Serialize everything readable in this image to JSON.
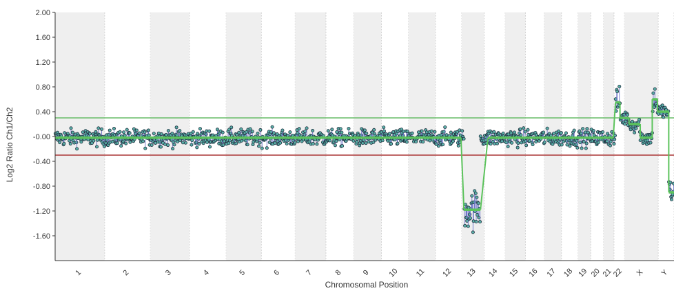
{
  "chart_data": {
    "type": "scatter",
    "title": "",
    "xlabel": "Chromosomal Position",
    "ylabel": "Log2 Ratio Ch1/Ch2",
    "ylim": [
      -2.0,
      2.0
    ],
    "yticks": [
      "2.00",
      "1.60",
      "1.20",
      "0.80",
      "0.40",
      "-0.00",
      "-0.40",
      "-0.80",
      "-1.20",
      "-1.60"
    ],
    "ytick_values": [
      2.0,
      1.6,
      1.2,
      0.8,
      0.4,
      0.0,
      -0.4,
      -0.8,
      -1.2,
      -1.6
    ],
    "thresholds": [
      {
        "value": 0.3,
        "color": "#66bb66"
      },
      {
        "value": -0.3,
        "color": "#aa3333"
      }
    ],
    "chromosomes": [
      {
        "label": "1",
        "start": 0,
        "end": 6.6,
        "shaded": true
      },
      {
        "label": "2",
        "start": 6.6,
        "end": 12.7,
        "shaded": false
      },
      {
        "label": "3",
        "start": 12.7,
        "end": 17.9,
        "shaded": true
      },
      {
        "label": "4",
        "start": 17.9,
        "end": 22.8,
        "shaded": false
      },
      {
        "label": "5",
        "start": 22.8,
        "end": 27.5,
        "shaded": true
      },
      {
        "label": "6",
        "start": 27.5,
        "end": 32.0,
        "shaded": false
      },
      {
        "label": "7",
        "start": 32.0,
        "end": 36.1,
        "shaded": true
      },
      {
        "label": "8",
        "start": 36.1,
        "end": 39.8,
        "shaded": false
      },
      {
        "label": "9",
        "start": 39.8,
        "end": 43.5,
        "shaded": true
      },
      {
        "label": "10",
        "start": 43.5,
        "end": 47.1,
        "shaded": false
      },
      {
        "label": "11",
        "start": 47.1,
        "end": 50.7,
        "shaded": true
      },
      {
        "label": "12",
        "start": 50.7,
        "end": 54.2,
        "shaded": false
      },
      {
        "label": "13",
        "start": 54.2,
        "end": 57.2,
        "shaded": true
      },
      {
        "label": "14",
        "start": 57.2,
        "end": 60.0,
        "shaded": false
      },
      {
        "label": "15",
        "start": 60.0,
        "end": 62.7,
        "shaded": true
      },
      {
        "label": "16",
        "start": 62.7,
        "end": 65.2,
        "shaded": false
      },
      {
        "label": "17",
        "start": 65.2,
        "end": 67.5,
        "shaded": true
      },
      {
        "label": "18",
        "start": 67.5,
        "end": 69.7,
        "shaded": false
      },
      {
        "label": "19",
        "start": 69.7,
        "end": 71.4,
        "shaded": true
      },
      {
        "label": "20",
        "start": 71.4,
        "end": 73.1,
        "shaded": false
      },
      {
        "label": "21",
        "start": 73.1,
        "end": 74.5,
        "shaded": true
      },
      {
        "label": "22",
        "start": 74.5,
        "end": 75.9,
        "shaded": false
      },
      {
        "label": "X",
        "start": 75.9,
        "end": 80.4,
        "shaded": true
      },
      {
        "label": "Y",
        "start": 80.4,
        "end": 82.5,
        "shaded": false
      }
    ],
    "x_range": [
      0,
      82.5
    ],
    "segments": [
      {
        "x0": 0,
        "x1": 54.1,
        "y": -0.02
      },
      {
        "x0": 54.5,
        "x1": 56.7,
        "y": -1.18
      },
      {
        "x0": 57.7,
        "x1": 74.4,
        "y": -0.02
      },
      {
        "x0": 74.7,
        "x1": 75.3,
        "y": 0.55
      },
      {
        "x0": 75.3,
        "x1": 76.5,
        "y": 0.3
      },
      {
        "x0": 76.5,
        "x1": 78.0,
        "y": 0.2
      },
      {
        "x0": 78.0,
        "x1": 79.6,
        "y": -0.02
      },
      {
        "x0": 79.6,
        "x1": 80.3,
        "y": 0.6
      },
      {
        "x0": 80.3,
        "x1": 81.8,
        "y": 0.4
      },
      {
        "x0": 81.8,
        "x1": 82.5,
        "y": -0.9
      }
    ],
    "colors": {
      "band": "#efefef",
      "band_border": "#d6d6d6",
      "point_fill": "#5ab0a8",
      "point_stroke": "#1f2f3f",
      "stem": "#6a72c8",
      "segment": "#5cc35c"
    }
  }
}
